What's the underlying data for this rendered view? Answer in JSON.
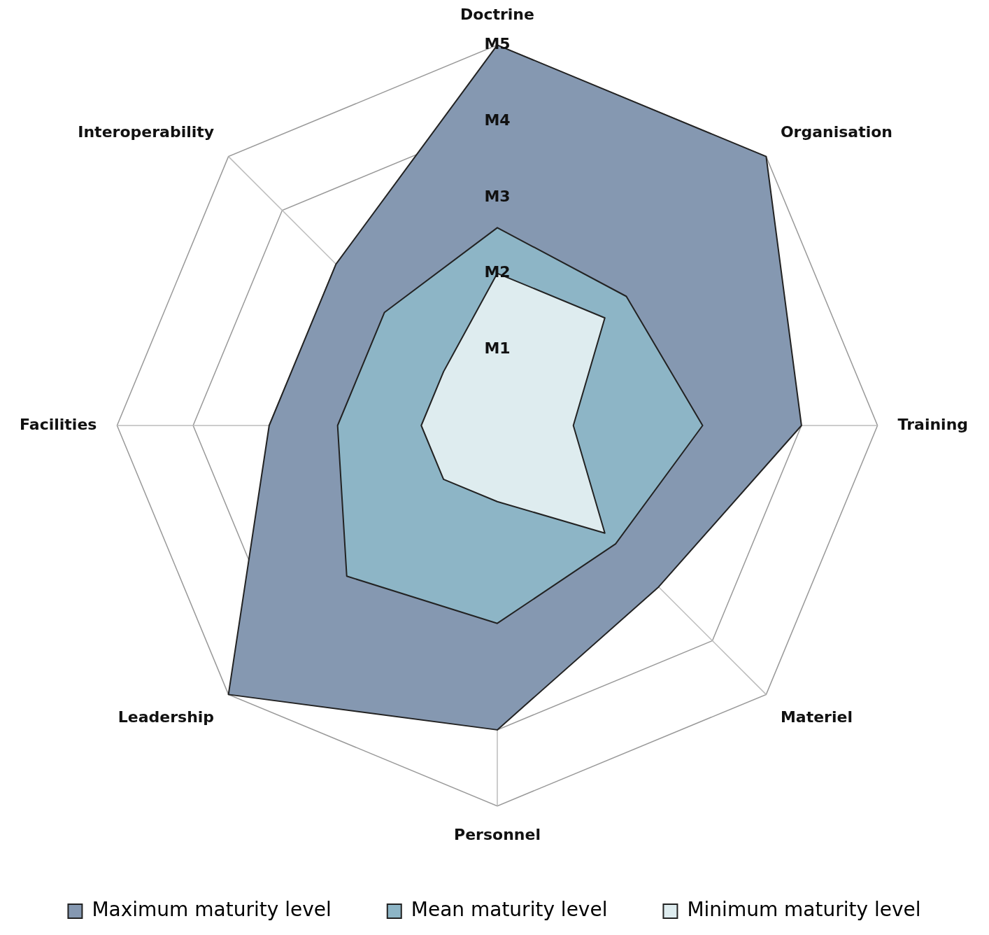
{
  "chart_data": {
    "type": "radar",
    "categories": [
      "Doctrine",
      "Organisation",
      "Training",
      "Materiel",
      "Personnel",
      "Leadership",
      "Facilities",
      "Interoperability"
    ],
    "series": [
      {
        "name": "Maximum maturity level",
        "color": "#8598b1",
        "values": [
          5,
          5,
          4,
          3,
          4,
          5,
          3,
          3
        ]
      },
      {
        "name": "Mean maturity level",
        "color": "#8db5c6",
        "values": [
          2.6,
          2.4,
          2.7,
          2.2,
          2.6,
          2.8,
          2.1,
          2.1
        ]
      },
      {
        "name": "Minimum maturity level",
        "color": "#deecef",
        "values": [
          2,
          2,
          1,
          2,
          1,
          1,
          1,
          1
        ]
      }
    ],
    "ylim": [
      0,
      5
    ],
    "yticks": [
      {
        "value": 1,
        "label": "M1"
      },
      {
        "value": 2,
        "label": "M2"
      },
      {
        "value": 3,
        "label": "M3"
      },
      {
        "value": 4,
        "label": "M4"
      },
      {
        "value": 5,
        "label": "M5"
      }
    ],
    "grid": true,
    "legend": "bottom",
    "marker": "none",
    "line_style": "solid"
  }
}
